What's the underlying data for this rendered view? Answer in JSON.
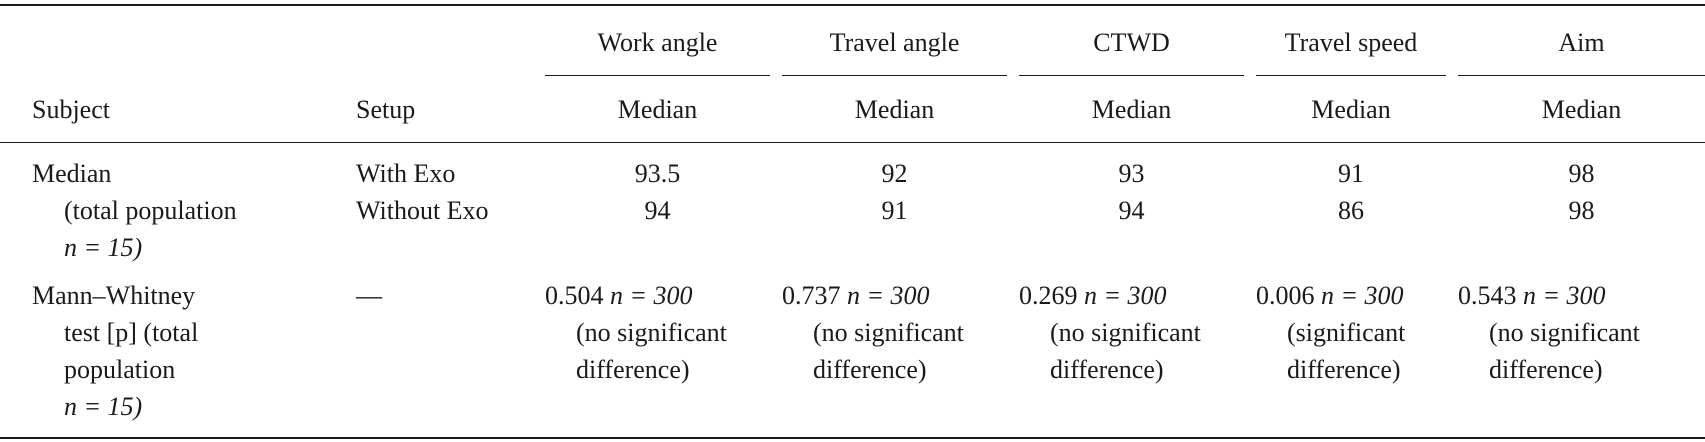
{
  "table": {
    "header": {
      "subject": "Subject",
      "setup": "Setup",
      "groups": [
        {
          "name": "Work angle",
          "sub": "Median"
        },
        {
          "name": "Travel angle",
          "sub": "Median"
        },
        {
          "name": "CTWD",
          "sub": "Median"
        },
        {
          "name": "Travel speed",
          "sub": "Median"
        },
        {
          "name": "Aim",
          "sub": "Median"
        }
      ]
    },
    "rows": [
      {
        "subject": [
          "Median",
          "(total population",
          "n = 15)"
        ],
        "setups": [
          "With Exo",
          "Without Exo"
        ],
        "values_with": [
          "93.5",
          "92",
          "93",
          "91",
          "98"
        ],
        "values_without": [
          "94",
          "91",
          "94",
          "86",
          "98"
        ]
      },
      {
        "subject": [
          "Mann–Whitney",
          "test [p] (total",
          "population",
          "n = 15)"
        ],
        "setup": "—",
        "cells": [
          {
            "p": "0.504",
            "n": "n = 300",
            "note1": "(no significant",
            "note2": "difference)"
          },
          {
            "p": "0.737",
            "n": "n = 300",
            "note1": "(no significant",
            "note2": "difference)"
          },
          {
            "p": "0.269",
            "n": "n = 300",
            "note1": "(no significant",
            "note2": "difference)"
          },
          {
            "p": "0.006",
            "n": "n = 300",
            "note1": "(significant",
            "note2": "difference)"
          },
          {
            "p": "0.543",
            "n": "n = 300",
            "note1": "(no significant",
            "note2": "difference)"
          }
        ]
      }
    ]
  }
}
